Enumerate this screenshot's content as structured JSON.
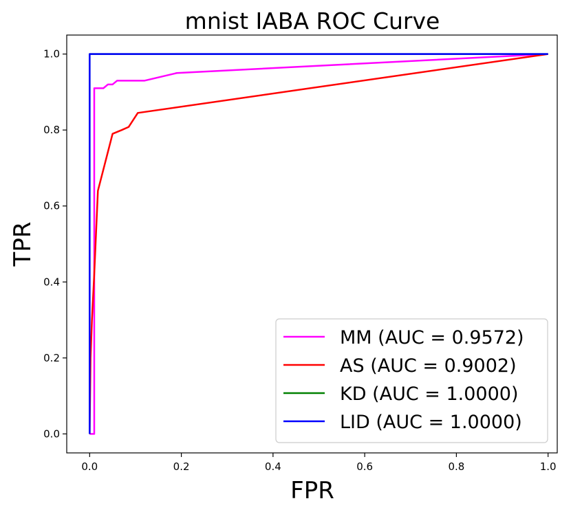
{
  "chart_data": {
    "type": "line",
    "title": "mnist IABA ROC Curve",
    "xlabel": "FPR",
    "ylabel": "TPR",
    "xlim": [
      -0.05,
      1.02
    ],
    "ylim": [
      -0.05,
      1.05
    ],
    "xticks": [
      "0.0",
      "0.2",
      "0.4",
      "0.6",
      "0.8",
      "1.0"
    ],
    "yticks": [
      "0.0",
      "0.2",
      "0.4",
      "0.6",
      "0.8",
      "1.0"
    ],
    "grid": false,
    "legend_position": "lower-right",
    "series": [
      {
        "name": "MM (AUC = 0.9572)",
        "color": "#ff00ff",
        "x": [
          0.0,
          0.0,
          0.01,
          0.01,
          0.02,
          0.03,
          0.04,
          0.05,
          0.06,
          0.12,
          0.19,
          1.0
        ],
        "y": [
          0.0,
          0.0,
          0.0,
          0.91,
          0.91,
          0.91,
          0.92,
          0.92,
          0.93,
          0.93,
          0.95,
          1.0
        ]
      },
      {
        "name": "AS (AUC = 0.9002)",
        "color": "#ff0000",
        "x": [
          0.0,
          0.002,
          0.005,
          0.01,
          0.018,
          0.05,
          0.07,
          0.085,
          0.105,
          1.0
        ],
        "y": [
          0.0,
          0.2,
          0.3,
          0.42,
          0.64,
          0.79,
          0.8,
          0.808,
          0.845,
          1.0
        ]
      },
      {
        "name": "KD (AUC = 1.0000)",
        "color": "#008000",
        "x": [
          0.0,
          0.0,
          1.0
        ],
        "y": [
          0.0,
          1.0,
          1.0
        ]
      },
      {
        "name": "LID (AUC = 1.0000)",
        "color": "#0000ff",
        "x": [
          0.0,
          0.0,
          1.0
        ],
        "y": [
          0.0,
          1.0,
          1.0
        ]
      }
    ]
  }
}
